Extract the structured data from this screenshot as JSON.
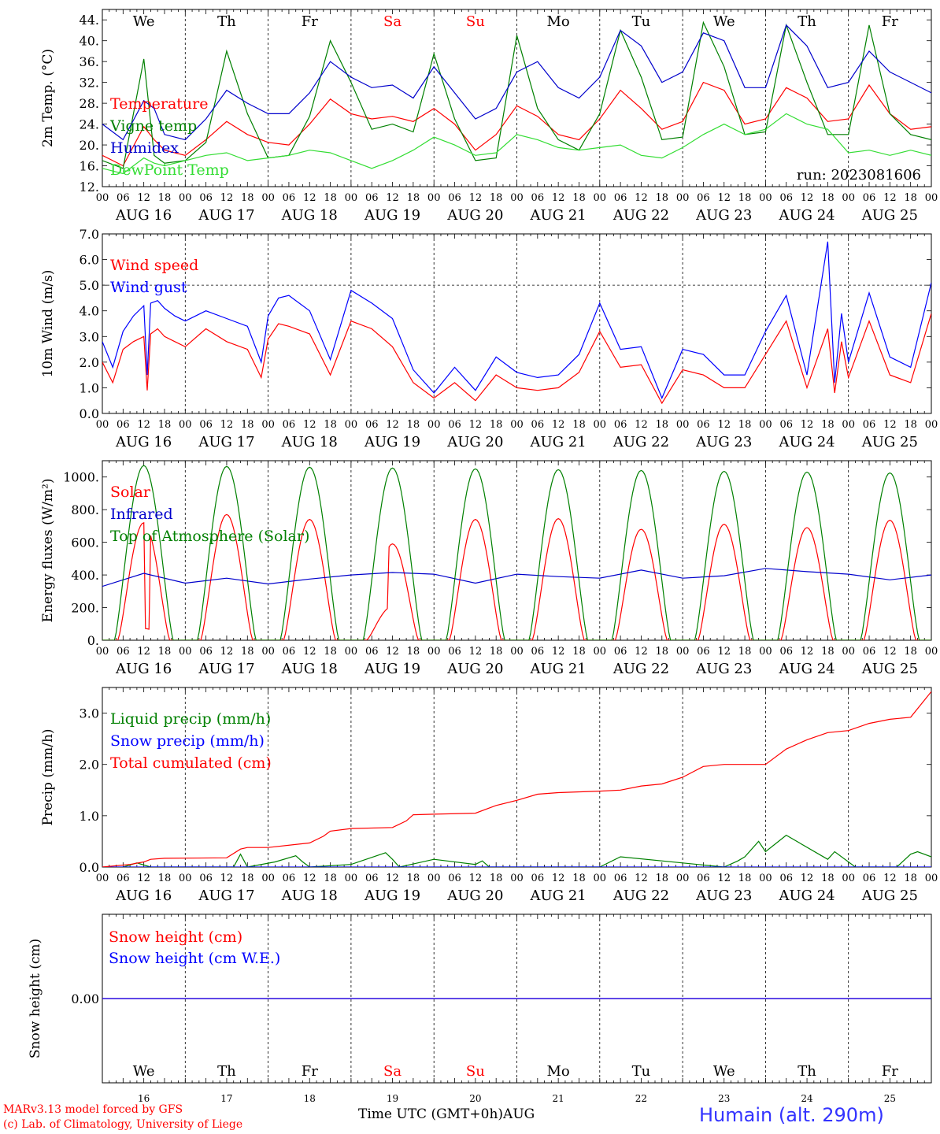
{
  "days": {
    "weekday_labels": [
      "We",
      "Th",
      "Fr",
      "Sa",
      "Su",
      "Mo",
      "Tu",
      "We",
      "Th",
      "Fr"
    ],
    "weekday_colors": [
      "#000000",
      "#000000",
      "#000000",
      "#ff0000",
      "#ff0000",
      "#000000",
      "#000000",
      "#000000",
      "#000000",
      "#000000"
    ],
    "date_labels": [
      "AUG 16",
      "AUG 17",
      "AUG 18",
      "AUG 19",
      "AUG 20",
      "AUG 21",
      "AUG 22",
      "AUG 23",
      "AUG 24",
      "AUG 25"
    ],
    "day_numbers": [
      "16",
      "17",
      "18",
      "19",
      "20",
      "21",
      "22",
      "23",
      "24",
      "25"
    ],
    "hour_ticks": [
      "00",
      "06",
      "12",
      "18"
    ],
    "final_tick": "00"
  },
  "footer": {
    "credit_line1": "MARv3.13 model forced by GFS",
    "credit_line2": "(c) Lab. of Climatology, University of Liege",
    "x_axis_title": "Time UTC (GMT+0h)AUG",
    "station": "Humain (alt. 290m)"
  },
  "chart_data": [
    {
      "type": "line",
      "ylabel": "2m Temp. (°C)",
      "ylim": [
        12,
        46
      ],
      "ytick_labels": [
        "12.",
        "16.",
        "20.",
        "24.",
        "28.",
        "32.",
        "36.",
        "40.",
        "44."
      ],
      "x_unit": "hours since 2023-08-16 00 UTC",
      "run_label": "run: 2023081606",
      "grid": "vertical day separators",
      "legend_position": "left",
      "series": [
        {
          "name": "Temperature",
          "color": "#ff0000",
          "x": [
            0,
            6,
            12,
            15,
            18,
            24,
            30,
            36,
            42,
            48,
            54,
            60,
            66,
            72,
            78,
            84,
            90,
            96,
            102,
            108,
            114,
            120,
            126,
            132,
            138,
            144,
            150,
            156,
            162,
            168,
            174,
            180,
            186,
            192,
            198,
            204,
            210,
            216,
            222,
            228,
            234,
            240
          ],
          "y": [
            18,
            16,
            23.5,
            21,
            19,
            18,
            21,
            24.5,
            22,
            20.5,
            20,
            24,
            28.8,
            26,
            25,
            25.5,
            24.5,
            27,
            24,
            19,
            22,
            27.5,
            25.5,
            22,
            21,
            25,
            30.5,
            27,
            23,
            24.5,
            32,
            30.5,
            24,
            25,
            31,
            29,
            24.5,
            25,
            31.5,
            26,
            23,
            23.5
          ]
        },
        {
          "name": "Vigne temp",
          "color": "#008000",
          "x": [
            0,
            6,
            12,
            15,
            18,
            24,
            30,
            36,
            42,
            48,
            54,
            60,
            66,
            72,
            78,
            84,
            90,
            96,
            102,
            108,
            114,
            120,
            126,
            132,
            138,
            144,
            150,
            156,
            162,
            168,
            174,
            180,
            186,
            192,
            198,
            204,
            210,
            216,
            222,
            228,
            234,
            240
          ],
          "y": [
            17,
            15.5,
            36.5,
            18,
            16.5,
            17,
            20.5,
            38,
            26,
            17.5,
            18,
            25.5,
            40,
            32,
            23,
            24,
            22.5,
            37.5,
            25,
            17,
            17.5,
            41,
            27,
            21,
            19,
            26,
            42,
            33,
            21,
            21.5,
            43.5,
            35,
            22,
            22.5,
            43,
            32,
            22,
            22,
            43,
            26,
            22,
            21
          ]
        },
        {
          "name": "Humidex",
          "color": "#0000cc",
          "x": [
            0,
            6,
            12,
            15,
            18,
            24,
            30,
            36,
            42,
            48,
            54,
            60,
            66,
            72,
            78,
            84,
            90,
            96,
            102,
            108,
            114,
            120,
            126,
            132,
            138,
            144,
            150,
            156,
            162,
            168,
            174,
            180,
            186,
            192,
            198,
            204,
            210,
            216,
            222,
            228,
            234,
            240
          ],
          "y": [
            24,
            21,
            28.5,
            27,
            22,
            21,
            25,
            30.5,
            28,
            26,
            26,
            30,
            36,
            33,
            31,
            31.5,
            29,
            35,
            30,
            25,
            27,
            34,
            36,
            31,
            29,
            33,
            42,
            39,
            32,
            34,
            41.5,
            40,
            31,
            31,
            43,
            39,
            31,
            32,
            38,
            34,
            32,
            30
          ]
        },
        {
          "name": "DewPoint Temp",
          "color": "#33dd33",
          "x": [
            0,
            6,
            12,
            15,
            18,
            24,
            30,
            36,
            42,
            48,
            54,
            60,
            66,
            72,
            78,
            84,
            90,
            96,
            102,
            108,
            114,
            120,
            126,
            132,
            138,
            144,
            150,
            156,
            162,
            168,
            174,
            180,
            186,
            192,
            198,
            204,
            210,
            216,
            222,
            228,
            234,
            240
          ],
          "y": [
            15.5,
            14.5,
            17.5,
            16.5,
            16,
            17,
            18,
            18.5,
            17,
            17.5,
            18,
            19,
            18.5,
            17,
            15.5,
            17,
            19,
            21.5,
            20,
            18,
            18.5,
            22,
            21,
            19.5,
            19,
            19.5,
            20,
            18,
            17.5,
            19.5,
            22,
            24,
            22,
            23,
            26,
            24,
            23,
            18.5,
            19,
            18,
            19,
            18
          ]
        }
      ]
    },
    {
      "type": "line",
      "ylabel": "10m Wind (m/s)",
      "ylim": [
        0,
        7
      ],
      "ytick_labels": [
        "0.0",
        "1.0",
        "2.0",
        "3.0",
        "4.0",
        "5.0",
        "6.0",
        "7.0"
      ],
      "reference_line": 5.0,
      "legend_position": "left",
      "series": [
        {
          "name": "Wind speed",
          "color": "#ff0000",
          "x": [
            0,
            3,
            6,
            9,
            12,
            13,
            14,
            16,
            18,
            21,
            24,
            30,
            36,
            42,
            46,
            48,
            51,
            54,
            60,
            66,
            72,
            78,
            84,
            90,
            96,
            102,
            108,
            114,
            120,
            126,
            132,
            138,
            144,
            150,
            156,
            162,
            168,
            174,
            180,
            186,
            192,
            198,
            204,
            210,
            212,
            214,
            216,
            222,
            228,
            234,
            240
          ],
          "y": [
            2.0,
            1.2,
            2.5,
            2.8,
            3.0,
            0.9,
            3.1,
            3.3,
            3.0,
            2.8,
            2.6,
            3.3,
            2.8,
            2.5,
            1.4,
            2.9,
            3.5,
            3.4,
            3.1,
            1.5,
            3.6,
            3.3,
            2.6,
            1.2,
            0.6,
            1.2,
            0.5,
            1.5,
            1.0,
            0.9,
            1.0,
            1.6,
            3.2,
            1.8,
            1.9,
            0.4,
            1.7,
            1.5,
            1.0,
            1.0,
            2.3,
            3.6,
            1.0,
            3.3,
            0.8,
            2.8,
            1.4,
            3.6,
            1.5,
            1.2,
            3.9
          ]
        },
        {
          "name": "Wind gust",
          "color": "#0000ff",
          "x": [
            0,
            3,
            6,
            9,
            12,
            13,
            14,
            16,
            18,
            21,
            24,
            30,
            36,
            42,
            46,
            48,
            51,
            54,
            60,
            66,
            72,
            78,
            84,
            90,
            96,
            102,
            108,
            114,
            120,
            126,
            132,
            138,
            144,
            150,
            156,
            162,
            168,
            174,
            180,
            186,
            192,
            198,
            204,
            210,
            212,
            214,
            216,
            222,
            228,
            234,
            240
          ],
          "y": [
            2.8,
            1.8,
            3.2,
            3.8,
            4.2,
            1.5,
            4.3,
            4.4,
            4.1,
            3.8,
            3.6,
            4.0,
            3.7,
            3.4,
            2.0,
            3.8,
            4.5,
            4.6,
            4.0,
            2.1,
            4.8,
            4.3,
            3.7,
            1.7,
            0.8,
            1.8,
            0.9,
            2.2,
            1.6,
            1.4,
            1.5,
            2.3,
            4.3,
            2.5,
            2.6,
            0.6,
            2.5,
            2.3,
            1.5,
            1.5,
            3.2,
            4.6,
            1.5,
            6.7,
            1.2,
            3.9,
            2.0,
            4.7,
            2.2,
            1.8,
            5.1
          ]
        }
      ]
    },
    {
      "type": "line",
      "ylabel": "Energy fluxes (W/m²)",
      "ylim": [
        0,
        1100
      ],
      "ytick_labels": [
        "0.",
        "200.",
        "400.",
        "600.",
        "800.",
        "1000."
      ],
      "legend_position": "left",
      "daily_peaks": {
        "top_of_atmosphere": [
          1070,
          1065,
          1060,
          1055,
          1050,
          1045,
          1040,
          1035,
          1030,
          1025
        ],
        "solar": [
          720,
          770,
          740,
          590,
          740,
          745,
          680,
          710,
          690,
          735
        ]
      },
      "series": [
        {
          "name": "Solar",
          "color": "#ff0000"
        },
        {
          "name": "Infrared",
          "color": "#0000cc",
          "x": [
            0,
            12,
            24,
            36,
            48,
            60,
            72,
            84,
            96,
            108,
            120,
            132,
            144,
            156,
            168,
            180,
            192,
            204,
            216,
            228,
            240
          ],
          "y": [
            330,
            410,
            350,
            380,
            345,
            375,
            400,
            415,
            405,
            350,
            405,
            390,
            380,
            430,
            380,
            395,
            440,
            420,
            405,
            370,
            400
          ]
        },
        {
          "name": "Top of Atmosphere (Solar)",
          "color": "#008000"
        }
      ]
    },
    {
      "type": "line",
      "ylabel": "Precip (mm/h)",
      "ylim": [
        0,
        3.5
      ],
      "ytick_labels": [
        "0.0",
        "1.0",
        "2.0",
        "3.0"
      ],
      "legend_position": "left",
      "series": [
        {
          "name": "Liquid precip (mm/h)",
          "color": "#008000",
          "x": [
            6,
            10,
            14,
            38,
            40,
            42,
            50,
            56,
            58,
            60,
            72,
            82,
            84,
            86,
            96,
            108,
            110,
            112,
            144,
            150,
            180,
            184,
            186,
            190,
            192,
            198,
            210,
            212,
            218,
            230,
            234,
            236,
            240
          ],
          "y": [
            0,
            0.08,
            0,
            0,
            0.25,
            0,
            0.1,
            0.22,
            0.1,
            0,
            0.05,
            0.28,
            0.15,
            0,
            0.15,
            0.05,
            0.12,
            0,
            0,
            0.2,
            0,
            0.12,
            0.2,
            0.5,
            0.3,
            0.62,
            0.15,
            0.3,
            0,
            0,
            0.25,
            0.3,
            0.2
          ]
        },
        {
          "name": "Snow precip (mm/h)",
          "color": "#0000ff",
          "x": [
            0,
            240
          ],
          "y": [
            0,
            0
          ]
        },
        {
          "name": "Total cumulated (cm)",
          "color": "#ff0000",
          "x": [
            0,
            8,
            12,
            14,
            18,
            36,
            40,
            42,
            48,
            60,
            64,
            66,
            72,
            84,
            88,
            90,
            96,
            108,
            112,
            114,
            120,
            126,
            132,
            144,
            150,
            156,
            162,
            168,
            174,
            180,
            186,
            192,
            198,
            204,
            210,
            216,
            222,
            228,
            234,
            240
          ],
          "y": [
            0,
            0.05,
            0.1,
            0.15,
            0.17,
            0.18,
            0.35,
            0.38,
            0.38,
            0.47,
            0.6,
            0.7,
            0.75,
            0.77,
            0.9,
            1.02,
            1.03,
            1.05,
            1.15,
            1.2,
            1.3,
            1.42,
            1.45,
            1.48,
            1.5,
            1.58,
            1.62,
            1.75,
            1.96,
            2.0,
            2.0,
            2.0,
            2.3,
            2.48,
            2.62,
            2.66,
            2.8,
            2.88,
            2.92,
            3.42
          ]
        }
      ]
    },
    {
      "type": "line",
      "ylabel": "Snow height (cm)",
      "ylim": [
        -1,
        1
      ],
      "ytick_labels": [
        "0.00"
      ],
      "legend_position": "left",
      "series": [
        {
          "name": "Snow height (cm)",
          "color": "#ff0000",
          "x": [
            0,
            240
          ],
          "y": [
            0,
            0
          ]
        },
        {
          "name": "Snow height (cm W.E.)",
          "color": "#0000ff",
          "x": [
            0,
            240
          ],
          "y": [
            0,
            0
          ]
        }
      ]
    }
  ]
}
